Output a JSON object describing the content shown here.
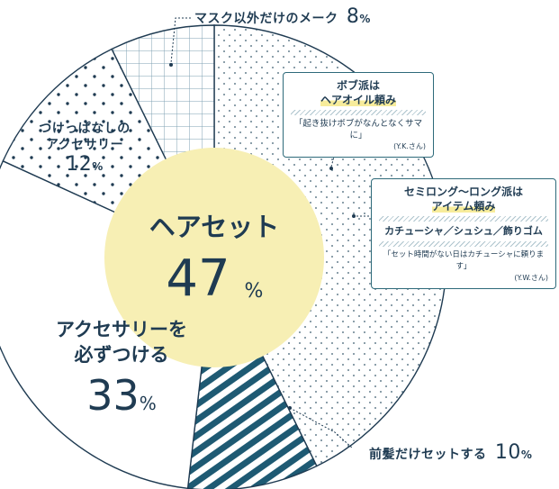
{
  "chart_data": {
    "type": "pie",
    "categories": [
      "ヘアセット",
      "前髪だけセットする",
      "アクセサリーを必ずつける",
      "つけっぱなしのアクセサリー",
      "マスク以外だけのメーク"
    ],
    "values": [
      47,
      10,
      33,
      12,
      8
    ],
    "center_label": {
      "title": "ヘアセット",
      "value": "47",
      "unit": "%"
    }
  },
  "labels": {
    "mask": {
      "text": "マスク以外だけのメーク",
      "value": "8",
      "unit": "%"
    },
    "tsukeppanashi": {
      "line1": "つけっぱなしの",
      "line2": "アクセサリー",
      "value": "12",
      "unit": "%"
    },
    "accessory": {
      "line1": "アクセサリーを",
      "line2": "必ずつける",
      "value": "33",
      "unit": "%"
    },
    "bangs": {
      "text": "前髪だけセットする",
      "value": "10",
      "unit": "%"
    }
  },
  "notes": [
    {
      "title1": "ボブ派は",
      "title2": "ヘアオイル頼み",
      "quote": "「起き抜けボブがなんとなくサマに」",
      "author": "(Y.K.さん)"
    },
    {
      "title1": "セミロング〜ロング派は",
      "title2": "アイテム頼み",
      "items": "カチューシャ／シュシュ／飾りゴム",
      "quote": "「セット時間がない日はカチューシャに頼ります」",
      "author": "(Y.W.さん)"
    }
  ],
  "colors": {
    "ink": "#1f3b52",
    "accent": "#1e5a73",
    "center": "#f7efb4",
    "teal": "#2e6a7a"
  }
}
